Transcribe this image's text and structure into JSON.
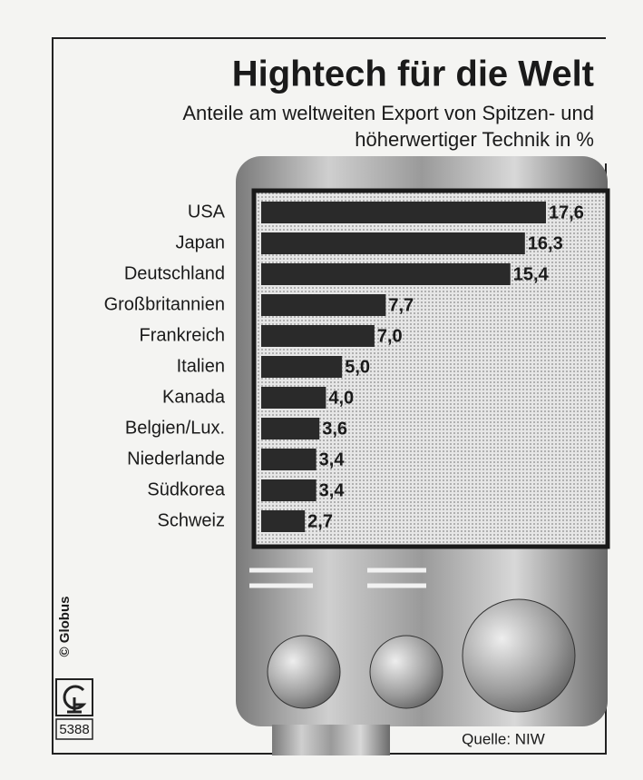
{
  "chart_data": {
    "type": "bar",
    "orientation": "horizontal",
    "title": "Hightech für die Welt",
    "subtitle": [
      "Anteile am weltweiten Export von Spitzen- und",
      "höherwertiger Technik in %"
    ],
    "categories": [
      "USA",
      "Japan",
      "Deutschland",
      "Großbritannien",
      "Frankreich",
      "Italien",
      "Kanada",
      "Belgien/Lux.",
      "Niederlande",
      "Südkorea",
      "Schweiz"
    ],
    "values": [
      17.6,
      16.3,
      15.4,
      7.7,
      7.0,
      5.0,
      4.0,
      3.6,
      3.4,
      3.4,
      2.7
    ],
    "value_labels": [
      "17,6",
      "16,3",
      "15,4",
      "7,7",
      "7,0",
      "5,0",
      "4,0",
      "3,6",
      "3,4",
      "3,4",
      "2,7"
    ],
    "color": "#2a2a2a",
    "source": "Quelle: NIW",
    "credit": "© Globus",
    "graphic_number": "5388"
  }
}
